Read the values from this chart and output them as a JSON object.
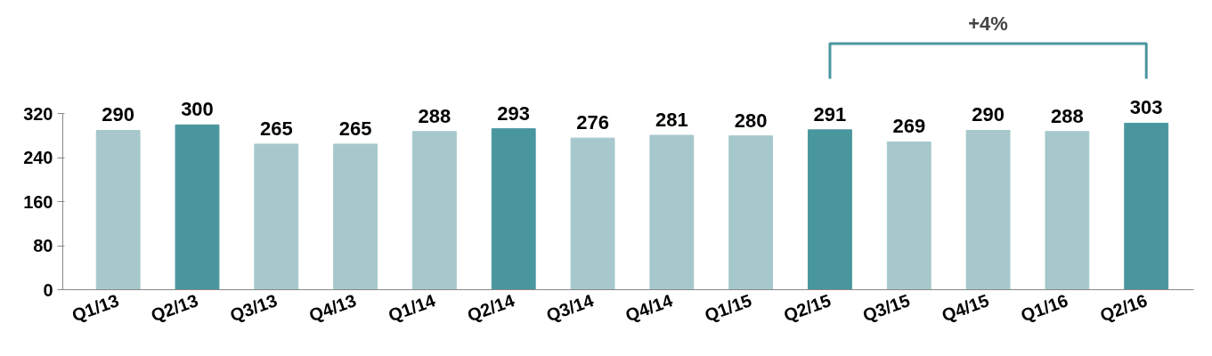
{
  "chart_data": {
    "type": "bar",
    "categories": [
      "Q1/13",
      "Q2/13",
      "Q3/13",
      "Q4/13",
      "Q1/14",
      "Q2/14",
      "Q3/14",
      "Q4/14",
      "Q1/15",
      "Q2/15",
      "Q3/15",
      "Q4/15",
      "Q1/16",
      "Q2/16"
    ],
    "values": [
      290,
      300,
      265,
      265,
      288,
      293,
      276,
      281,
      280,
      291,
      269,
      290,
      288,
      303
    ],
    "colors": [
      "#a6c8cc",
      "#4a969e",
      "#a6c8cc",
      "#a6c8cc",
      "#a6c8cc",
      "#4a969e",
      "#a6c8cc",
      "#a6c8cc",
      "#a6c8cc",
      "#4a969e",
      "#a6c8cc",
      "#a6c8cc",
      "#a6c8cc",
      "#4a969e"
    ],
    "ylim": [
      0,
      320
    ],
    "yticks": [
      0,
      80,
      160,
      240,
      320
    ],
    "data_labels": true,
    "grid": false,
    "annotations": [
      "+4%"
    ]
  }
}
